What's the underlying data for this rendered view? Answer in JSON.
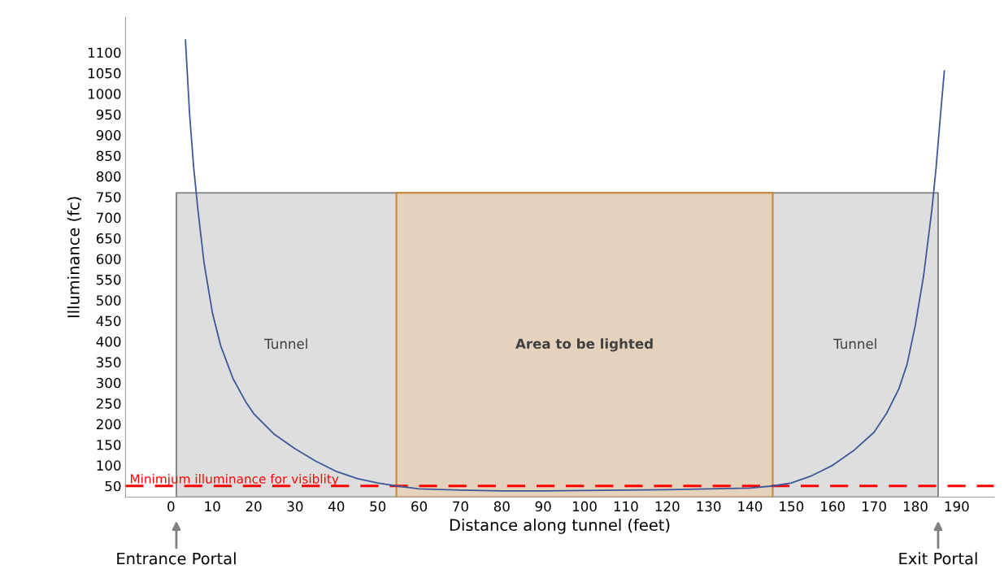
{
  "chart_data": {
    "type": "line",
    "xlabel": "Distance along tunnel (feet)",
    "ylabel": "Illuminance (fc)",
    "xlim": [
      -11,
      199
    ],
    "ylim": [
      23,
      1185
    ],
    "xticks": [
      0,
      10,
      20,
      30,
      40,
      50,
      60,
      70,
      80,
      90,
      100,
      110,
      120,
      130,
      140,
      150,
      160,
      170,
      180,
      190
    ],
    "yticks": [
      50,
      100,
      150,
      200,
      250,
      300,
      350,
      400,
      450,
      500,
      550,
      600,
      650,
      700,
      750,
      800,
      850,
      900,
      950,
      1000,
      1050,
      1100
    ],
    "grid": false,
    "legend": false,
    "marker": "none",
    "line_style": "solid",
    "series": [
      {
        "type": "area",
        "color": "#dedede",
        "x": [
          1.3,
          185.5
        ],
        "values": [
          760,
          760
        ]
      },
      {
        "type": "area",
        "color": "#e5d2bd",
        "x": [
          54.5,
          145.5
        ],
        "values": [
          760,
          760
        ]
      },
      {
        "color": "#3b5998",
        "x": [
          3.5,
          4.5,
          5.5,
          6.5,
          8,
          10,
          12,
          15,
          18,
          20,
          25,
          30,
          35,
          40,
          45,
          50,
          54.5,
          60,
          70,
          80,
          90,
          100,
          110,
          120,
          130,
          140,
          145.5,
          150,
          155,
          160,
          165,
          170,
          173,
          176,
          178,
          180,
          182,
          184,
          185,
          186,
          187
        ],
        "values": [
          1130,
          950,
          820,
          720,
          590,
          470,
          390,
          310,
          255,
          225,
          175,
          140,
          110,
          85,
          68,
          57,
          50,
          43,
          40,
          38,
          38,
          39,
          40,
          41,
          43,
          45,
          50,
          57,
          75,
          100,
          135,
          180,
          225,
          285,
          345,
          440,
          560,
          720,
          820,
          940,
          1055
        ]
      }
    ],
    "ref_lines": [
      {
        "axis": "y",
        "value": 50,
        "label": "Minimjum illuminance for visiblity",
        "color": "#ff0000",
        "line_style": "dashed"
      }
    ],
    "annotations": [
      "Tunnel",
      "Area to be lighted",
      "Tunnel",
      "Entrance Portal",
      "Exit Portal"
    ]
  }
}
